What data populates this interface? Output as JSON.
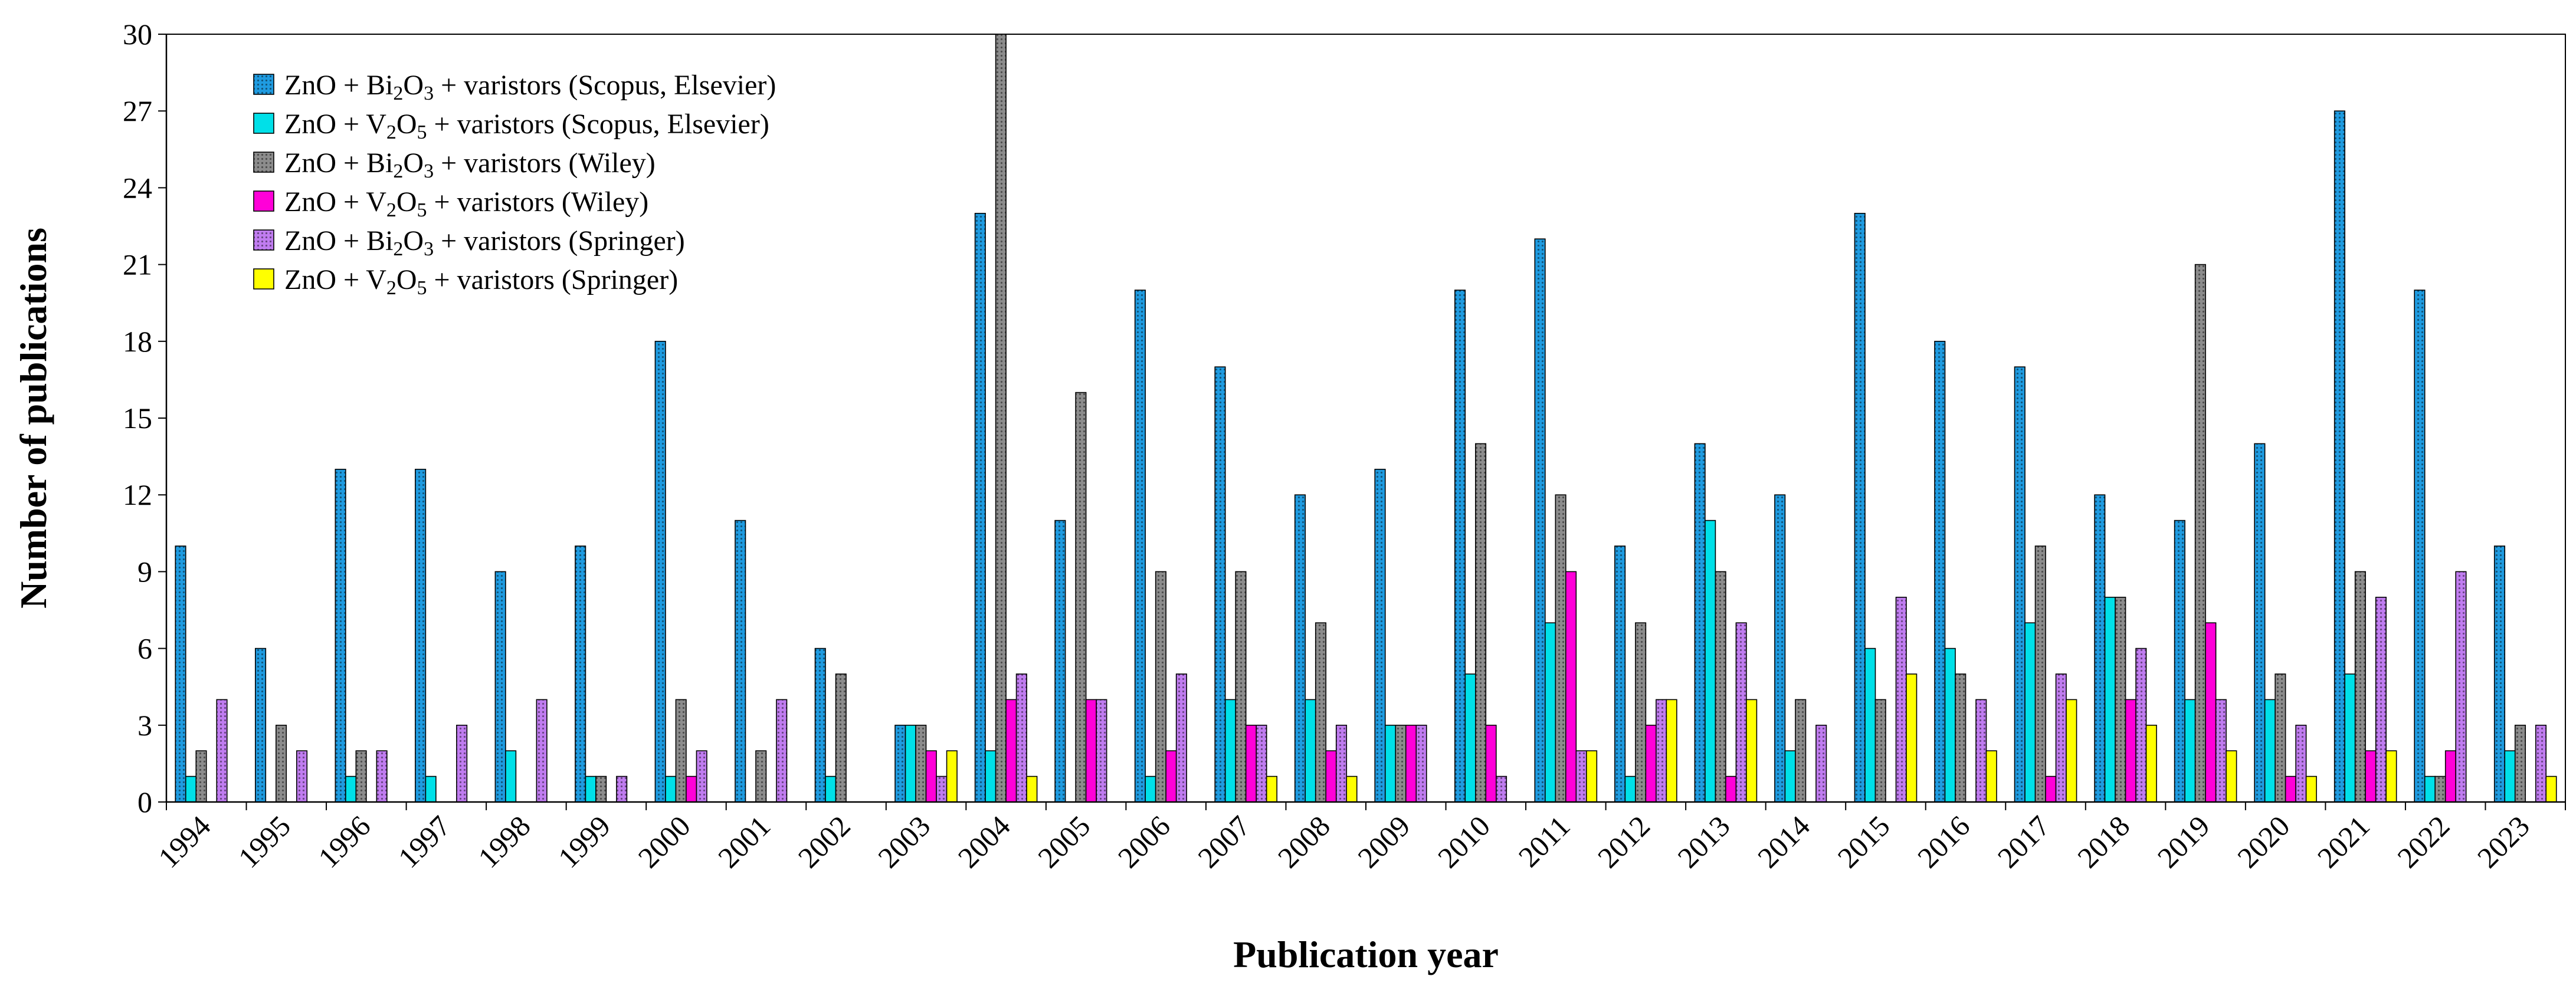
{
  "chart_data": {
    "type": "bar",
    "xlabel": "Publication year",
    "ylabel": "Number of publications",
    "ylim": [
      0,
      30
    ],
    "yticks": [
      "0",
      "3",
      "6",
      "9",
      "12",
      "15",
      "18",
      "21",
      "24",
      "27",
      "30"
    ],
    "categories": [
      "1994",
      "1995",
      "1996",
      "1997",
      "1998",
      "1999",
      "2000",
      "2001",
      "2002",
      "2003",
      "2004",
      "2005",
      "2006",
      "2007",
      "2008",
      "2009",
      "2010",
      "2011",
      "2012",
      "2013",
      "2014",
      "2015",
      "2016",
      "2017",
      "2018",
      "2019",
      "2020",
      "2021",
      "2022",
      "2023"
    ],
    "legend_position": "top-left",
    "series": [
      {
        "name": "ZnO + Bi2O3 + varistors (Scopus, Elsevier)",
        "color": "#1f9be0",
        "pattern": "dots",
        "values": [
          10,
          6,
          13,
          13,
          9,
          10,
          18,
          11,
          6,
          3,
          23,
          11,
          20,
          17,
          12,
          13,
          20,
          22,
          10,
          14,
          12,
          23,
          18,
          17,
          12,
          11,
          14,
          27,
          20,
          10
        ]
      },
      {
        "name": "ZnO + V2O5 + varistors (Scopus, Elsevier)",
        "color": "#00e0e8",
        "pattern": "solid",
        "values": [
          1,
          0,
          1,
          1,
          2,
          1,
          1,
          0,
          1,
          3,
          2,
          0,
          1,
          4,
          4,
          3,
          5,
          7,
          1,
          11,
          2,
          6,
          6,
          7,
          8,
          4,
          4,
          5,
          1,
          2
        ]
      },
      {
        "name": "ZnO + Bi2O3 + varistors (Wiley)",
        "color": "#8c8c8c",
        "pattern": "dots",
        "values": [
          2,
          3,
          2,
          0,
          0,
          1,
          4,
          2,
          5,
          3,
          30,
          16,
          9,
          9,
          7,
          3,
          14,
          12,
          7,
          9,
          4,
          4,
          5,
          10,
          8,
          21,
          5,
          9,
          1,
          3
        ]
      },
      {
        "name": "ZnO + V2O5 + varistors (Wiley)",
        "color": "#ff00d8",
        "pattern": "solid",
        "values": [
          0,
          0,
          0,
          0,
          0,
          0,
          1,
          0,
          0,
          2,
          4,
          4,
          2,
          3,
          2,
          3,
          3,
          9,
          3,
          1,
          0,
          0,
          0,
          1,
          4,
          7,
          1,
          2,
          2,
          0
        ]
      },
      {
        "name": "ZnO + Bi2O3 + varistors (Springer)",
        "color": "#c07cf0",
        "pattern": "dots",
        "values": [
          4,
          2,
          2,
          3,
          4,
          1,
          2,
          4,
          0,
          1,
          5,
          4,
          5,
          3,
          3,
          3,
          1,
          2,
          4,
          7,
          3,
          8,
          4,
          5,
          6,
          4,
          3,
          8,
          9,
          3
        ]
      },
      {
        "name": "ZnO + V2O5 + varistors (Springer)",
        "color": "#ffff00",
        "pattern": "solid",
        "values": [
          0,
          0,
          0,
          0,
          0,
          0,
          0,
          0,
          0,
          2,
          1,
          0,
          0,
          1,
          1,
          0,
          0,
          2,
          4,
          4,
          0,
          5,
          2,
          4,
          3,
          2,
          1,
          2,
          0,
          1
        ]
      }
    ]
  },
  "legend": [
    {
      "pre": "ZnO + Bi",
      "sub1": "2",
      "mid": "O",
      "sub2": "3",
      "post": " + varistors (Scopus, Elsevier)"
    },
    {
      "pre": "ZnO + V",
      "sub1": "2",
      "mid": "O",
      "sub2": "5",
      "post": " + varistors (Scopus, Elsevier)"
    },
    {
      "pre": "ZnO + Bi",
      "sub1": "2",
      "mid": "O",
      "sub2": "3",
      "post": " + varistors (Wiley)"
    },
    {
      "pre": "ZnO + V",
      "sub1": "2",
      "mid": "O",
      "sub2": "5",
      "post": " + varistors (Wiley)"
    },
    {
      "pre": "ZnO + Bi",
      "sub1": "2",
      "mid": "O",
      "sub2": "3",
      "post": " + varistors (Springer)"
    },
    {
      "pre": "ZnO + V",
      "sub1": "2",
      "mid": "O",
      "sub2": "5",
      "post": " + varistors (Springer)"
    }
  ]
}
